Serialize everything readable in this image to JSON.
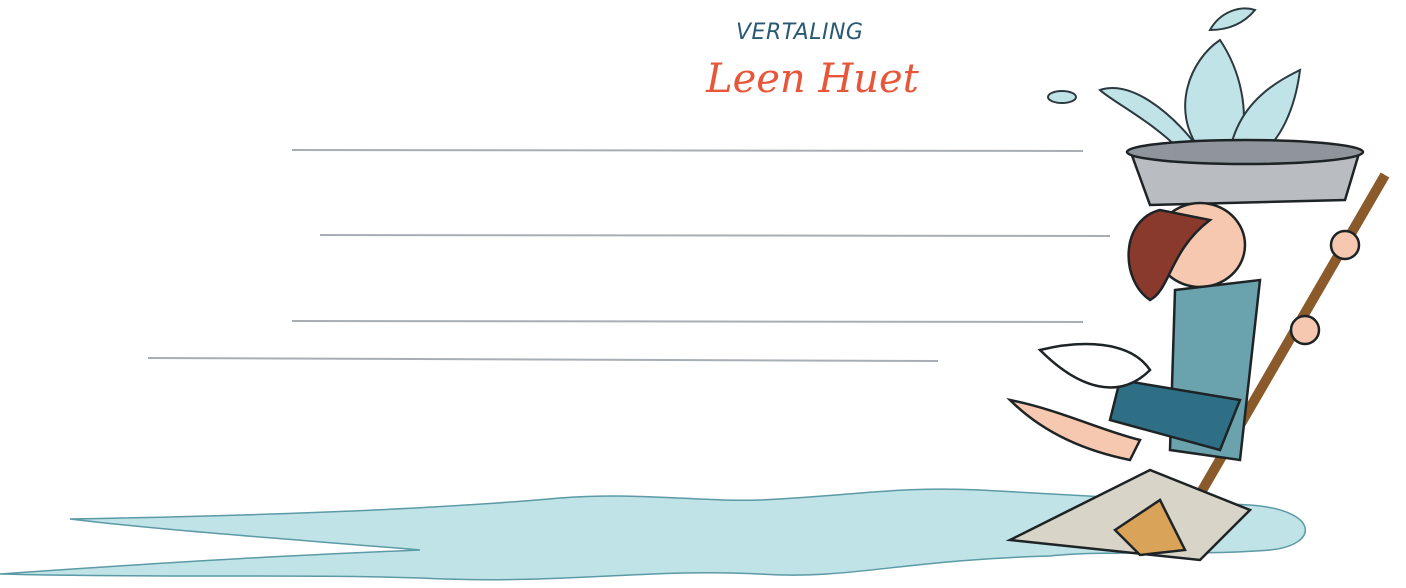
{
  "translator": {
    "label": "VERTALING",
    "name": "Leen Huet"
  }
}
